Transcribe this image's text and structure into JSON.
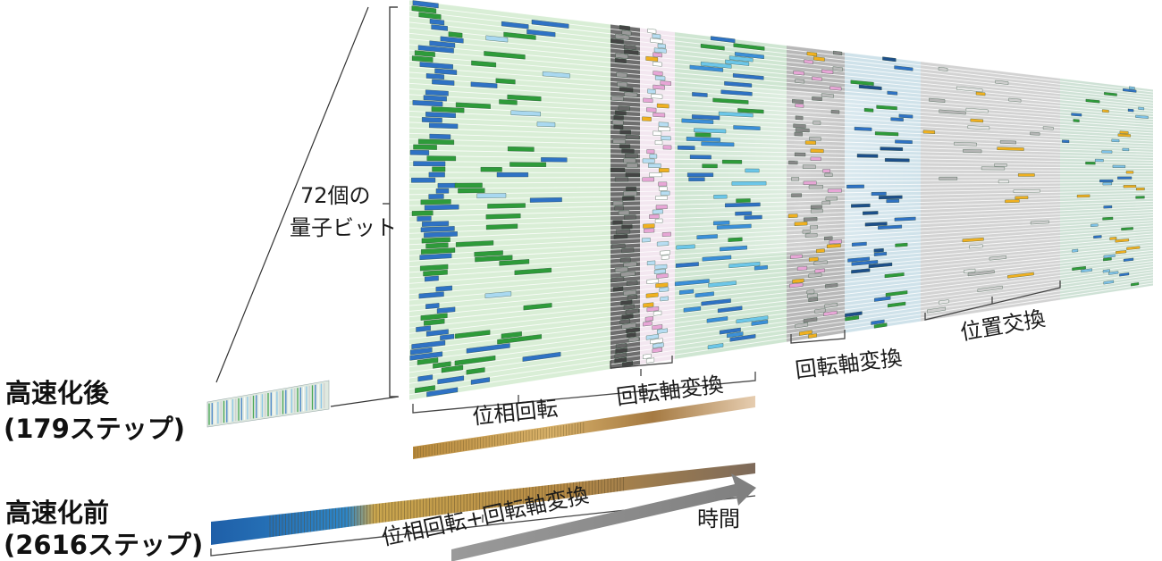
{
  "labels": {
    "qubits_line1": "72個の",
    "qubits_line2": "量子ビット",
    "after_title": "高速化後",
    "after_steps": "(179ステップ)",
    "before_title": "高速化前",
    "before_steps": "(2616ステップ)",
    "phase_rotation": "位相回転",
    "axis_change_1": "回転軸変換",
    "axis_change_2": "回転軸変換",
    "position_swap": "位置交換",
    "combined": "位相回転+回転軸変換",
    "time": "時間"
  },
  "colors": {
    "green": "#2e9b3a",
    "blue": "#2f72c4",
    "light_green": "#cfeccb",
    "gray": "#8a8a8a",
    "pink": "#e7a6d6",
    "orange": "#f0b020",
    "gold": "#c8a14a",
    "arrow": "#888888"
  },
  "diagram": {
    "qubit_count": 72,
    "after_steps_count": 179,
    "before_steps_count": 2616
  }
}
